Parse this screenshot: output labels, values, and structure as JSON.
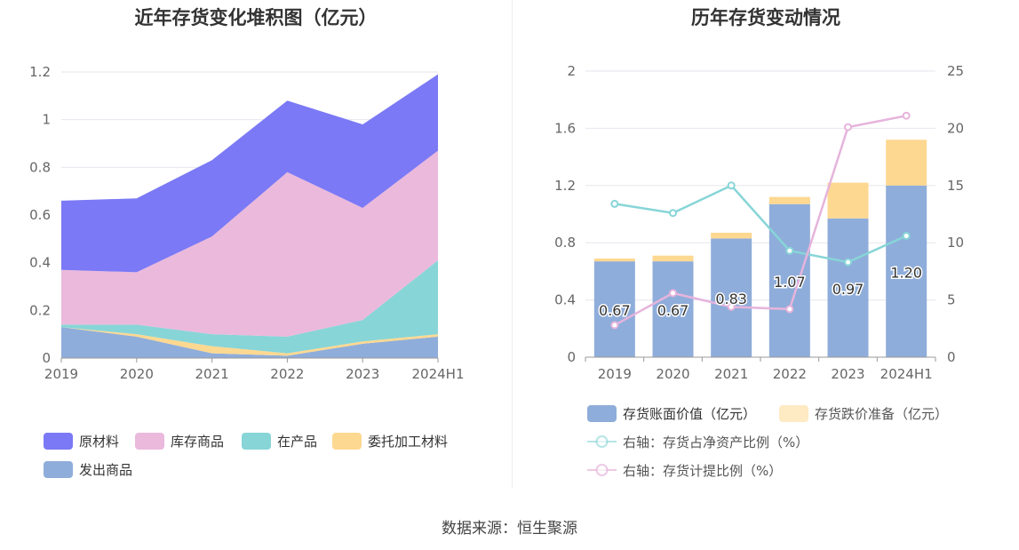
{
  "colors": {
    "raw_material": "#7b79f5",
    "finished_goods": "#ebb9dc",
    "wip": "#87d5d7",
    "consigned": "#fdd891",
    "shipped": "#8fadda",
    "book_value": "#8fadda",
    "impairment": "#fdd891",
    "ratio_net_assets": "#87d5d7",
    "impairment_ratio": "#e6b4dc"
  },
  "source": "数据来源：恒生聚源",
  "chart_data": [
    {
      "type": "area",
      "title": "近年存货变化堆积图（亿元）",
      "x": [
        "2019",
        "2020",
        "2021",
        "2022",
        "2023",
        "2024H1"
      ],
      "ylim": [
        0,
        1.2
      ],
      "yticks": [
        "0",
        "0.2",
        "0.4",
        "0.6",
        "0.8",
        "1",
        "1.2"
      ],
      "stacked": true,
      "grid": true,
      "legend": "bottom",
      "series": [
        {
          "name": "发出商品",
          "values": [
            0.13,
            0.09,
            0.02,
            0.01,
            0.06,
            0.09
          ]
        },
        {
          "name": "委托加工材料",
          "values": [
            0.0,
            0.01,
            0.03,
            0.01,
            0.01,
            0.01
          ]
        },
        {
          "name": "在产品",
          "values": [
            0.01,
            0.04,
            0.05,
            0.07,
            0.09,
            0.31
          ]
        },
        {
          "name": "库存商品",
          "values": [
            0.23,
            0.22,
            0.41,
            0.69,
            0.47,
            0.46
          ]
        },
        {
          "name": "原材料",
          "values": [
            0.29,
            0.31,
            0.32,
            0.3,
            0.35,
            0.32
          ]
        }
      ],
      "legend_order": [
        "原材料",
        "库存商品",
        "在产品",
        "委托加工材料",
        "发出商品"
      ]
    },
    {
      "type": "bar",
      "title": "历年存货变动情况",
      "categories": [
        "2019",
        "2020",
        "2021",
        "2022",
        "2023",
        "2024H1"
      ],
      "ylim": [
        0,
        2
      ],
      "yticks": [
        "0",
        "0.4",
        "0.8",
        "1.2",
        "1.6",
        "2"
      ],
      "y2lim": [
        0,
        25
      ],
      "y2ticks": [
        "0",
        "5",
        "10",
        "15",
        "20",
        "25"
      ],
      "stacked": true,
      "grid": true,
      "legend": "bottom",
      "series": [
        {
          "name": "存货账面价值（亿元）",
          "kind": "bar",
          "axis": "left",
          "values": [
            0.67,
            0.67,
            0.83,
            1.07,
            0.97,
            1.2
          ],
          "labels": [
            "0.67",
            "0.67",
            "0.83",
            "1.07",
            "0.97",
            "1.20"
          ]
        },
        {
          "name": "存货跌价准备（亿元）",
          "kind": "bar",
          "axis": "left",
          "values": [
            0.02,
            0.04,
            0.04,
            0.05,
            0.25,
            0.32
          ]
        },
        {
          "name": "右轴：存货占净资产比例（%）",
          "kind": "line",
          "axis": "right",
          "values": [
            13.4,
            12.6,
            15.0,
            9.3,
            8.3,
            10.6
          ]
        },
        {
          "name": "右轴：存货计提比例（%）",
          "kind": "line",
          "axis": "right",
          "values": [
            2.8,
            5.6,
            4.4,
            4.2,
            20.1,
            21.1
          ]
        }
      ]
    }
  ]
}
